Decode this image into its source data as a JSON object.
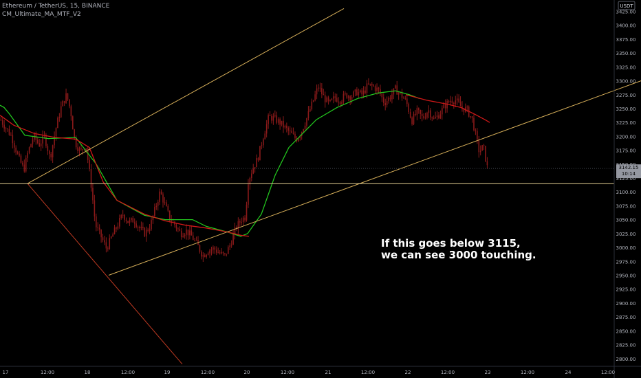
{
  "header": {
    "symbol_line": "Ethereum / TetherUS, 15, BINANCE",
    "indicator": "CM_Ultimate_MA_MTF_V2"
  },
  "annotation": {
    "line1": "If this goes below 3115,",
    "line2": "we can see 3000 touching."
  },
  "colors": {
    "background": "#000000",
    "candle": "#8b1a1a",
    "ma_fast": "#22c51e",
    "ma_slow": "#d01818",
    "trendline": "#d8b05a",
    "support": "#e8d496",
    "down_line": "#c03a22",
    "axis_text": "#b2b5be",
    "price_label_bg": "#9598a1"
  },
  "chart_data": {
    "type": "candlestick",
    "title": "Ethereum / TetherUS, 15, BINANCE",
    "currency": "USDT",
    "ylim": [
      2790,
      3430
    ],
    "y_ticks": [
      3425,
      3400,
      3375,
      3350,
      3325,
      3300,
      3275,
      3250,
      3225,
      3200,
      3175,
      3150,
      3125,
      3100,
      3075,
      3050,
      3025,
      3000,
      2975,
      2950,
      2925,
      2900,
      2875,
      2850,
      2825,
      2800
    ],
    "x_ticks": [
      "17",
      "12:00",
      "18",
      "12:00",
      "19",
      "12:00",
      "20",
      "12:00",
      "21",
      "12:00",
      "22",
      "12:00",
      "23",
      "12:00",
      "24",
      "12:00"
    ],
    "last_price": "3142.15",
    "countdown": "10:14",
    "support_level": 3115,
    "price_path": [
      [
        0,
        3230
      ],
      [
        8,
        3215
      ],
      [
        16,
        3200
      ],
      [
        26,
        3162
      ],
      [
        34,
        3140
      ],
      [
        40,
        3172
      ],
      [
        48,
        3200
      ],
      [
        56,
        3185
      ],
      [
        64,
        3200
      ],
      [
        72,
        3160
      ],
      [
        80,
        3212
      ],
      [
        88,
        3252
      ],
      [
        96,
        3275
      ],
      [
        102,
        3245
      ],
      [
        108,
        3190
      ],
      [
        116,
        3172
      ],
      [
        124,
        3185
      ],
      [
        132,
        3110
      ],
      [
        138,
        3040
      ],
      [
        146,
        3020
      ],
      [
        154,
        2998
      ],
      [
        162,
        3020
      ],
      [
        170,
        3040
      ],
      [
        178,
        3060
      ],
      [
        186,
        3045
      ],
      [
        194,
        3050
      ],
      [
        202,
        3035
      ],
      [
        210,
        3025
      ],
      [
        218,
        3040
      ],
      [
        226,
        3075
      ],
      [
        232,
        3100
      ],
      [
        238,
        3080
      ],
      [
        246,
        3052
      ],
      [
        254,
        3040
      ],
      [
        262,
        3025
      ],
      [
        270,
        3030
      ],
      [
        278,
        3020
      ],
      [
        286,
        3005
      ],
      [
        294,
        2985
      ],
      [
        302,
        2995
      ],
      [
        310,
        2998
      ],
      [
        318,
        2990
      ],
      [
        326,
        2985
      ],
      [
        334,
        3005
      ],
      [
        342,
        3035
      ],
      [
        350,
        3050
      ],
      [
        356,
        3055
      ],
      [
        360,
        3120
      ],
      [
        366,
        3140
      ],
      [
        374,
        3160
      ],
      [
        382,
        3200
      ],
      [
        390,
        3235
      ],
      [
        398,
        3232
      ],
      [
        406,
        3225
      ],
      [
        414,
        3215
      ],
      [
        422,
        3205
      ],
      [
        430,
        3195
      ],
      [
        438,
        3210
      ],
      [
        446,
        3235
      ],
      [
        454,
        3262
      ],
      [
        462,
        3290
      ],
      [
        470,
        3270
      ],
      [
        478,
        3258
      ],
      [
        486,
        3270
      ],
      [
        494,
        3265
      ],
      [
        502,
        3275
      ],
      [
        510,
        3272
      ],
      [
        518,
        3280
      ],
      [
        526,
        3275
      ],
      [
        534,
        3292
      ],
      [
        542,
        3290
      ],
      [
        550,
        3282
      ],
      [
        558,
        3260
      ],
      [
        566,
        3270
      ],
      [
        574,
        3285
      ],
      [
        582,
        3275
      ],
      [
        590,
        3262
      ],
      [
        598,
        3228
      ],
      [
        606,
        3245
      ],
      [
        614,
        3232
      ],
      [
        622,
        3248
      ],
      [
        630,
        3230
      ],
      [
        638,
        3240
      ],
      [
        646,
        3255
      ],
      [
        654,
        3265
      ],
      [
        662,
        3265
      ],
      [
        670,
        3252
      ],
      [
        678,
        3248
      ],
      [
        686,
        3230
      ],
      [
        692,
        3195
      ],
      [
        696,
        3172
      ],
      [
        702,
        3182
      ],
      [
        708,
        3142
      ]
    ],
    "series": [
      {
        "type": "ma",
        "color": "#22c51e",
        "values": [
          [
            0,
            3256
          ],
          [
            6,
            3252
          ],
          [
            14,
            3240
          ],
          [
            36,
            3202
          ],
          [
            70,
            3196
          ],
          [
            110,
            3198
          ],
          [
            140,
            3150
          ],
          [
            170,
            3085
          ],
          [
            210,
            3058
          ],
          [
            240,
            3050
          ],
          [
            262,
            3050
          ],
          [
            280,
            3050
          ],
          [
            300,
            3038
          ],
          [
            330,
            3028
          ],
          [
            350,
            3020
          ],
          [
            360,
            3025
          ],
          [
            380,
            3060
          ],
          [
            400,
            3130
          ],
          [
            420,
            3180
          ],
          [
            440,
            3205
          ],
          [
            460,
            3230
          ],
          [
            490,
            3252
          ],
          [
            520,
            3268
          ],
          [
            550,
            3278
          ],
          [
            575,
            3282
          ],
          [
            595,
            3275
          ],
          [
            610,
            3268
          ]
        ]
      },
      {
        "type": "ma",
        "color": "#d01818",
        "values": [
          [
            0,
            3238
          ],
          [
            20,
            3220
          ],
          [
            50,
            3205
          ],
          [
            80,
            3198
          ],
          [
            110,
            3195
          ],
          [
            130,
            3180
          ],
          [
            150,
            3118
          ],
          [
            170,
            3085
          ],
          [
            210,
            3060
          ],
          [
            240,
            3048
          ],
          [
            270,
            3040
          ],
          [
            300,
            3035
          ],
          [
            330,
            3028
          ],
          [
            350,
            3022
          ],
          [
            362,
            3020
          ]
        ]
      },
      {
        "type": "ma",
        "color": "#d01818",
        "values": [
          [
            590,
            3275
          ],
          [
            620,
            3265
          ],
          [
            650,
            3258
          ],
          [
            670,
            3252
          ],
          [
            690,
            3240
          ],
          [
            705,
            3230
          ],
          [
            712,
            3225
          ]
        ]
      }
    ],
    "drawings": [
      {
        "type": "trendline",
        "from": [
          40,
          3115
        ],
        "to": [
          500,
          3430
        ]
      },
      {
        "type": "trendline",
        "from": [
          158,
          2950
        ],
        "to": [
          932,
          3300
        ]
      },
      {
        "type": "trendline",
        "from": [
          40,
          3115
        ],
        "to": [
          265,
          2790
        ]
      },
      {
        "type": "horizontal",
        "price": 3115
      }
    ]
  }
}
